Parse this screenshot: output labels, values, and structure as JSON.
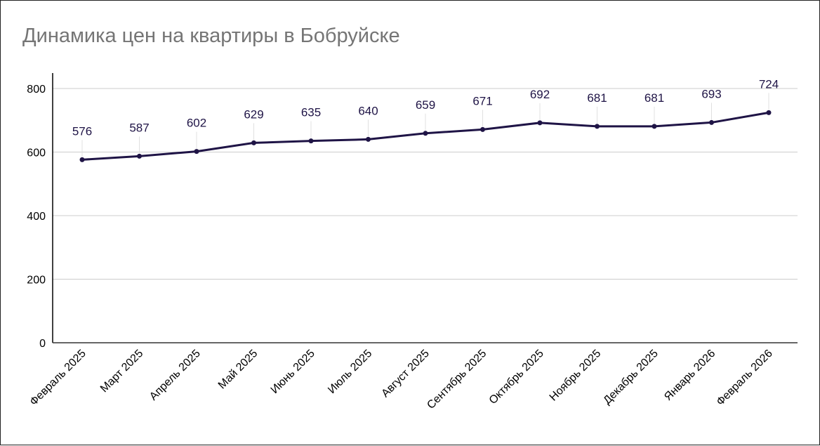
{
  "chart_data": {
    "type": "line",
    "title": "Динамика цен на квартиры в Бобруйске",
    "xlabel": "",
    "ylabel": "",
    "categories": [
      "Февраль 2025",
      "Март 2025",
      "Апрель 2025",
      "Май 2025",
      "Июнь 2025",
      "Июль 2025",
      "Август 2025",
      "Сентябрь 2025",
      "Октябрь 2025",
      "Ноябрь 2025",
      "Декабрь 2025",
      "Январь 2026",
      "Февраль 2026"
    ],
    "series": [
      {
        "values": [
          576,
          587,
          602,
          629,
          635,
          640,
          659,
          671,
          692,
          681,
          681,
          693,
          724
        ]
      }
    ],
    "ylim": [
      0,
      800
    ],
    "yticks": [
      0,
      200,
      400,
      600,
      800
    ],
    "grid": true,
    "data_labels": true,
    "colors": {
      "line": "#1f1446",
      "grid": "#cccccc",
      "title": "#757575"
    }
  }
}
